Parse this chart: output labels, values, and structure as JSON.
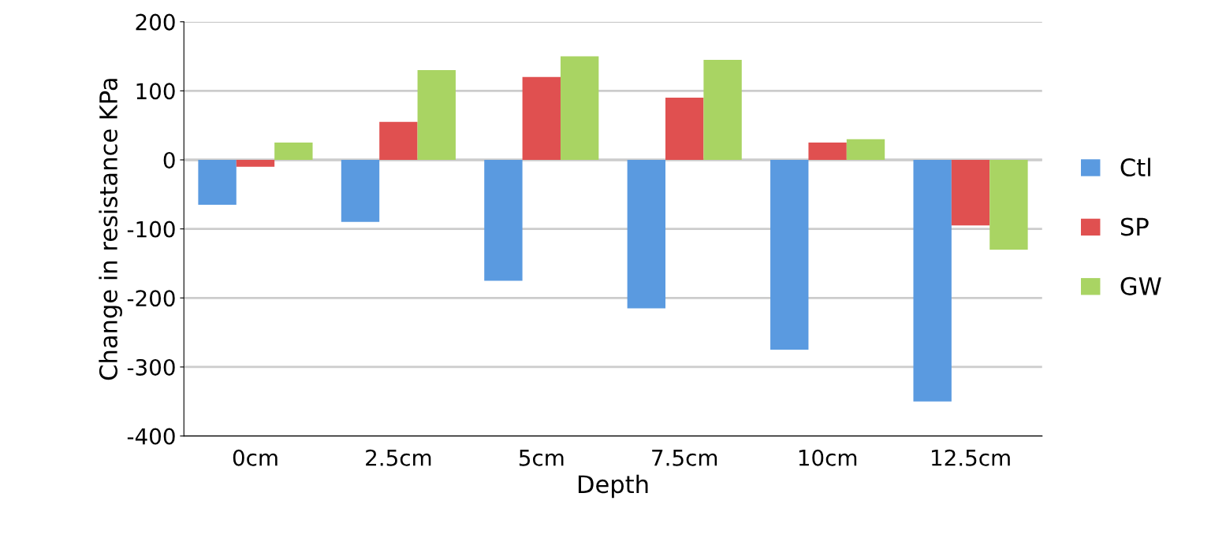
{
  "chart_data": {
    "type": "bar",
    "xlabel": "Depth",
    "ylabel": "Change in resistance KPa",
    "categories": [
      "0cm",
      "2.5cm",
      "5cm",
      "7.5cm",
      "10cm",
      "12.5cm"
    ],
    "series": [
      {
        "name": "Ctl",
        "color": "#5a9ae0",
        "values": [
          -65,
          -90,
          -175,
          -215,
          -275,
          -350
        ]
      },
      {
        "name": "SP",
        "color": "#e05050",
        "values": [
          -10,
          55,
          120,
          90,
          25,
          -95
        ]
      },
      {
        "name": "GW",
        "color": "#a9d463",
        "values": [
          25,
          130,
          150,
          145,
          30,
          -130
        ]
      }
    ],
    "ylim": [
      -400,
      200
    ],
    "yticks": [
      -400,
      -300,
      -200,
      -100,
      0,
      100,
      200
    ],
    "grid": "y",
    "legend": "right"
  }
}
